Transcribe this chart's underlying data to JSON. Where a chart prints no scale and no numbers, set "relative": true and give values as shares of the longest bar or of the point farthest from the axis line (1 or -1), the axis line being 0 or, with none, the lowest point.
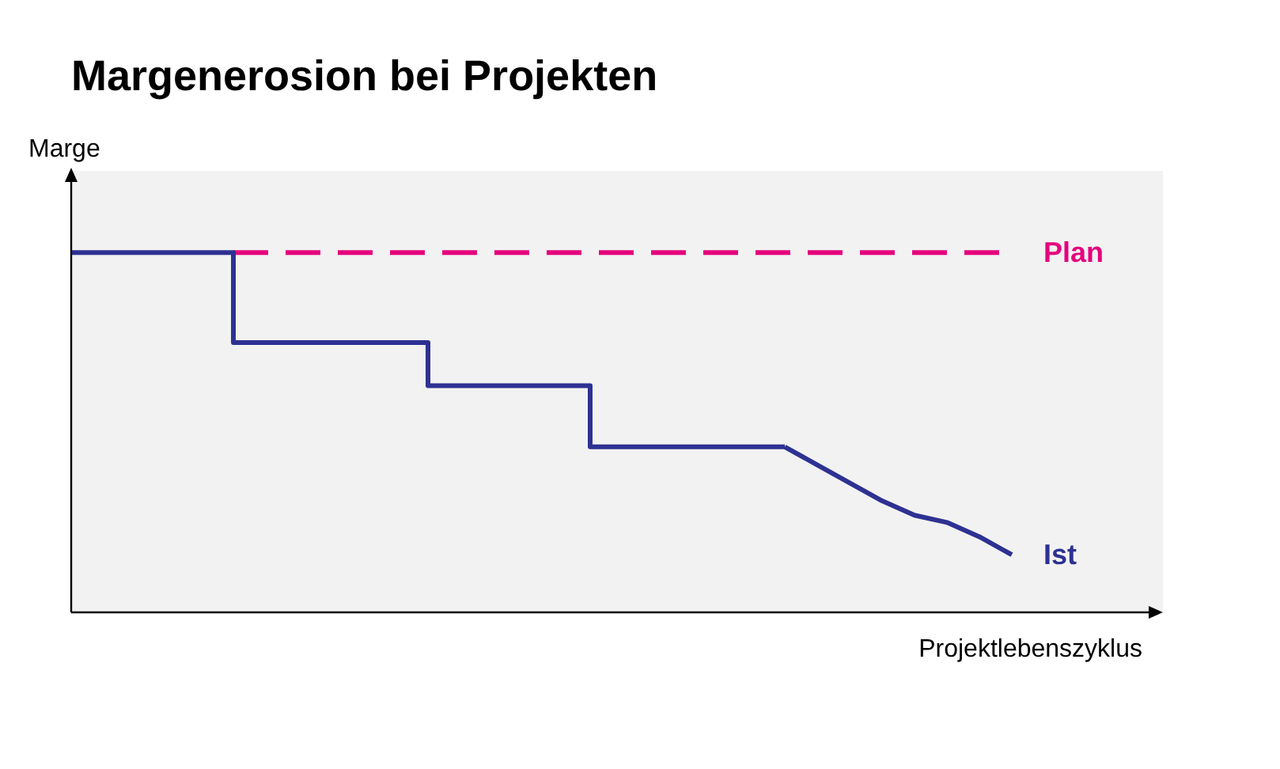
{
  "chart_data": {
    "type": "line",
    "title": "Margenerosion bei Projekten",
    "xlabel": "Projektlebenszyklus",
    "ylabel": "Marge",
    "relative": true,
    "marker": "none",
    "categories": [
      null,
      null,
      null,
      null,
      null,
      null,
      null,
      null,
      null,
      null,
      null,
      null,
      null,
      null,
      null,
      null,
      null,
      null,
      null,
      null,
      null,
      null,
      null,
      null,
      null,
      null,
      null,
      null,
      null,
      null
    ],
    "series": [
      {
        "name": "Plan",
        "color": "#e5007d",
        "line_style": "dashed",
        "values": [
          null,
          null,
          null,
          null,
          null,
          1,
          1,
          1,
          1,
          1,
          1,
          1,
          1,
          1,
          1,
          1,
          1,
          1,
          1,
          1,
          1,
          1,
          1,
          1,
          1,
          1,
          1,
          1,
          1,
          1
        ]
      },
      {
        "type": "step",
        "color": "#2e3192",
        "line_style": "solid",
        "values": [
          1,
          1,
          1,
          1,
          1,
          0.75,
          0.75,
          0.75,
          0.75,
          0.75,
          0.75,
          0.63,
          0.63,
          0.63,
          0.63,
          0.63,
          0.46,
          0.46,
          0.46,
          0.46,
          0.46,
          0.46,
          0.46,
          null,
          null,
          null,
          null,
          null,
          null,
          null
        ]
      },
      {
        "name": "Ist",
        "color": "#2e3192",
        "line_style": "solid",
        "values": [
          null,
          null,
          null,
          null,
          null,
          null,
          null,
          null,
          null,
          null,
          null,
          null,
          null,
          null,
          null,
          null,
          null,
          null,
          null,
          null,
          null,
          null,
          0.46,
          0.41,
          0.36,
          0.31,
          0.27,
          0.25,
          0.21,
          0.16
        ]
      }
    ]
  }
}
